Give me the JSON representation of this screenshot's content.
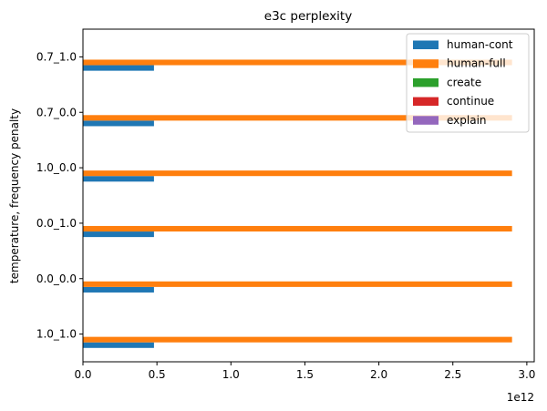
{
  "chart_data": {
    "type": "bar",
    "orientation": "horizontal",
    "title": "e3c perplexity",
    "xlabel": "",
    "ylabel": "temperature, frequency penalty",
    "x_offset_label": "1e12",
    "x_scale": 1000000000000.0,
    "xlim": [
      0,
      3050000000000.0
    ],
    "xticks": [
      0,
      500000000000.0,
      1000000000000.0,
      1500000000000.0,
      2000000000000.0,
      2500000000000.0,
      3000000000000.0
    ],
    "xtick_labels": [
      "0.0",
      "0.5",
      "1.0",
      "1.5",
      "2.0",
      "2.5",
      "3.0"
    ],
    "grid": false,
    "legend_position": "top-right",
    "categories": [
      "1.0_1.0",
      "0.0_0.0",
      "0.0_1.0",
      "1.0_0.0",
      "0.7_0.0",
      "0.7_1.0"
    ],
    "series": [
      {
        "name": "human-cont",
        "color": "#1f77b4",
        "values": [
          480000000000.0,
          480000000000.0,
          480000000000.0,
          480000000000.0,
          480000000000.0,
          480000000000.0
        ]
      },
      {
        "name": "human-full",
        "color": "#ff7f0e",
        "values": [
          2900000000000.0,
          2900000000000.0,
          2900000000000.0,
          2900000000000.0,
          2900000000000.0,
          2900000000000.0
        ]
      },
      {
        "name": "create",
        "color": "#2ca02c",
        "values": [
          0,
          0,
          0,
          0,
          0,
          0
        ]
      },
      {
        "name": "continue",
        "color": "#d62728",
        "values": [
          0,
          0,
          0,
          0,
          0,
          0
        ]
      },
      {
        "name": "explain",
        "color": "#9467bd",
        "values": [
          0,
          0,
          0,
          0,
          0,
          0
        ]
      }
    ]
  }
}
